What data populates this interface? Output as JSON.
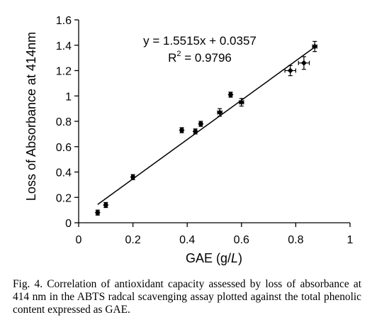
{
  "chart_data": {
    "type": "scatter",
    "xlabel_prefix": "GAE (g/",
    "xlabel_unit": "L",
    "xlabel_suffix": ")",
    "ylabel": "Loss of Absorbance at 414nm",
    "xlim": [
      0,
      1
    ],
    "ylim": [
      0,
      1.6
    ],
    "xticks": [
      0,
      0.2,
      0.4,
      0.6,
      0.8,
      1
    ],
    "xtick_labels": [
      "0",
      "0.2",
      "0.4",
      "0.6",
      "0.8",
      "1"
    ],
    "yticks": [
      0,
      0.2,
      0.4,
      0.6,
      0.8,
      1,
      1.2,
      1.4,
      1.6
    ],
    "ytick_labels": [
      "0",
      "0.2",
      "0.4",
      "0.6",
      "0.8",
      "1",
      "1.2",
      "1.4",
      "1.6"
    ],
    "points": [
      {
        "x": 0.07,
        "y": 0.08,
        "xerr": 0.005,
        "yerr": 0.02
      },
      {
        "x": 0.1,
        "y": 0.14,
        "xerr": 0.005,
        "yerr": 0.02
      },
      {
        "x": 0.2,
        "y": 0.36,
        "xerr": 0.005,
        "yerr": 0.02
      },
      {
        "x": 0.38,
        "y": 0.73,
        "xerr": 0.005,
        "yerr": 0.02
      },
      {
        "x": 0.43,
        "y": 0.72,
        "xerr": 0.005,
        "yerr": 0.02
      },
      {
        "x": 0.45,
        "y": 0.78,
        "xerr": 0.005,
        "yerr": 0.02
      },
      {
        "x": 0.52,
        "y": 0.87,
        "xerr": 0.008,
        "yerr": 0.03
      },
      {
        "x": 0.56,
        "y": 1.01,
        "xerr": 0.005,
        "yerr": 0.02
      },
      {
        "x": 0.6,
        "y": 0.95,
        "xerr": 0.008,
        "yerr": 0.03
      },
      {
        "x": 0.78,
        "y": 1.2,
        "xerr": 0.02,
        "yerr": 0.04
      },
      {
        "x": 0.83,
        "y": 1.26,
        "xerr": 0.02,
        "yerr": 0.05
      },
      {
        "x": 0.87,
        "y": 1.39,
        "xerr": 0.008,
        "yerr": 0.04
      }
    ],
    "trendline": {
      "slope": 1.5515,
      "intercept": 0.0357,
      "x_range": [
        0.07,
        0.87
      ]
    },
    "equation": "y = 1.5515x + 0.0357",
    "r2_prefix": "R",
    "r2_sup": "2",
    "r2_suffix": " = 0.9796",
    "grid": false,
    "legend": "none",
    "marker_color": "#000000"
  },
  "caption": "Fig. 4. Correlation of antioxidant capacity assessed by loss of absorbance at 414 nm in the ABTS radcal scavenging assay plotted against the total phenolic content expressed as GAE."
}
